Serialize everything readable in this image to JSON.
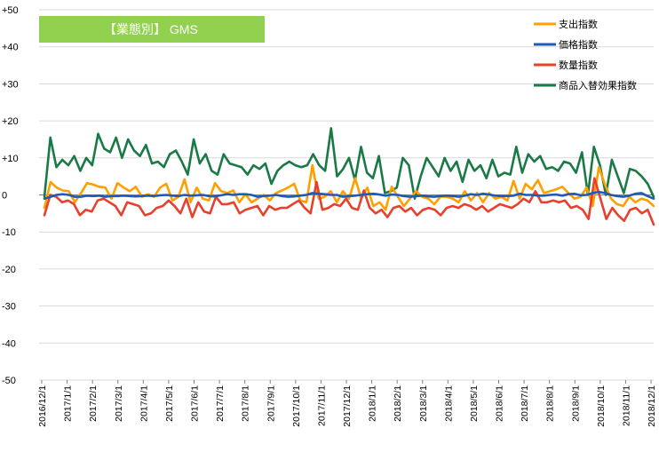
{
  "colors": {
    "spend": "#ffa000",
    "price": "#1f5ab4",
    "quantity": "#e8402d",
    "substitution": "#1a7a46",
    "title_bg": "#92d050",
    "title_text": "#ffffff",
    "gridline": "#d9d9d9"
  },
  "chart_data": {
    "type": "line",
    "title": "【業態別】 GMS",
    "ylim": [
      -50,
      50
    ],
    "ytick_labels": [
      "+50",
      "+40",
      "+30",
      "+20",
      "+10",
      "0",
      "-10",
      "-20",
      "-30",
      "-40",
      "-50"
    ],
    "xlabels": [
      "2016/12/1",
      "2017/1/1",
      "2017/2/1",
      "2017/3/1",
      "2017/4/1",
      "2017/5/1",
      "2017/6/1",
      "2017/7/1",
      "2017/8/1",
      "2017/9/1",
      "2017/10/1",
      "2017/11/1",
      "2017/12/1",
      "2018/1/1",
      "2018/2/1",
      "2018/3/1",
      "2018/4/1",
      "2018/5/1",
      "2018/6/1",
      "2018/7/1",
      "2018/8/1",
      "2018/9/1",
      "2018/10/1",
      "2018/11/1",
      "2018/12/1"
    ],
    "grid": "horizontal",
    "legend_position": "top-right",
    "series": [
      {
        "name": "支出指数",
        "color_key": "spend",
        "values": [
          -3.5,
          3.5,
          2,
          1.2,
          1,
          -2,
          0.5,
          3.2,
          2.8,
          2.2,
          2,
          -1,
          3.2,
          2,
          1,
          2.2,
          -0.5,
          0.2,
          -0.5,
          2,
          3,
          -1.5,
          -0.5,
          4.2,
          -2,
          2,
          -1,
          -1.5,
          3.2,
          1,
          0.5,
          1.2,
          -2,
          0.2,
          -2,
          -1,
          0,
          -1.5,
          0.5,
          1.2,
          2,
          3,
          -1.5,
          -2,
          8,
          -1,
          -0.5,
          1,
          -2,
          1,
          -1,
          4.5,
          -1,
          2,
          -3,
          -2,
          -4,
          2.2,
          -0.5,
          -3,
          -1,
          1,
          -0.5,
          -1,
          -2.5,
          -0.5,
          -0.5,
          -1,
          -2,
          1,
          -1.5,
          0.5,
          -2,
          0.5,
          -1,
          -0.5,
          -1.5,
          3.8,
          -1,
          3,
          1.5,
          4,
          0.5,
          1,
          1.5,
          2.2,
          0.5,
          -1,
          -0.5,
          2,
          -3,
          7.5,
          2.8,
          -1,
          -2.5,
          -3,
          -0.5,
          -2,
          -1,
          -1.5,
          -3
        ]
      },
      {
        "name": "価格指数",
        "color_key": "price",
        "values": [
          -1,
          -0.5,
          0,
          0.2,
          0,
          -0.5,
          -0.5,
          -0.2,
          -0.3,
          -0.2,
          -0.5,
          -0.3,
          -0.3,
          -0.2,
          -0.3,
          -0.4,
          -0.3,
          -0.2,
          -0.3,
          -0.1,
          0,
          -0.2,
          -0.3,
          0,
          -0.2,
          -0.1,
          0,
          -0.3,
          -0.4,
          -0.1,
          0.2,
          0,
          0.2,
          0.2,
          0,
          -0.5,
          -0.3,
          -0.2,
          0,
          -0.3,
          -0.5,
          -0.4,
          -0.2,
          0,
          0.5,
          0.3,
          0.2,
          0,
          0,
          -0.5,
          -0.3,
          -0.2,
          0,
          0.2,
          0.3,
          0.1,
          -0.2,
          0.1,
          0,
          -0.3,
          -0.5,
          -0.3,
          -0.2,
          -0.4,
          -0.5,
          -0.3,
          -0.2,
          -0.3,
          -0.5,
          -0.2,
          0.2,
          0,
          0.3,
          0.1,
          -0.2,
          -0.3,
          -0.3,
          -0.2,
          0.3,
          0,
          0,
          -0.2,
          -0.2,
          0,
          0.1,
          -0.2,
          0.2,
          0.3,
          -0.1,
          0,
          0.5,
          0.8,
          0.5,
          0,
          -0.3,
          -0.5,
          -0.2,
          0.3,
          0.5,
          -0.3,
          -1
        ]
      },
      {
        "name": "数量指数",
        "color_key": "quantity",
        "values": [
          -5.5,
          0,
          -0.5,
          -2,
          -1.5,
          -2.5,
          -5.5,
          -4,
          -4.5,
          -1.5,
          -1,
          -2,
          -3,
          -5.5,
          -2,
          -2.5,
          -3,
          -5.5,
          -5,
          -3.5,
          -3,
          -1.5,
          -3,
          -5,
          -1,
          -6,
          -2,
          -4.5,
          -5,
          -0.5,
          -2.5,
          -2.5,
          -2,
          -5,
          -4,
          -3.5,
          -3,
          -5.5,
          -3,
          -4,
          -3.5,
          -3.5,
          -2.5,
          -1.5,
          -3.5,
          -5,
          3.5,
          -4,
          -3.5,
          -2.5,
          -3,
          -1,
          -3.5,
          -4,
          1.2,
          -3.5,
          -5,
          -4,
          -6,
          -3.5,
          -3,
          -4.5,
          -3.5,
          -5.5,
          -4,
          -3.5,
          -4,
          -5.5,
          -3.5,
          -3,
          -3.5,
          -2.5,
          -3,
          -4,
          -3,
          -4.5,
          -3.5,
          -2.5,
          -3,
          -3.5,
          -2.5,
          -1,
          -2,
          1,
          -2,
          -2,
          -1.5,
          -2,
          -1.5,
          -3.5,
          -3,
          -4,
          -6.5,
          4.5,
          -1,
          -6.5,
          -3.5,
          -5.5,
          -7,
          -4,
          -3.5,
          -5,
          -4,
          -8
        ]
      },
      {
        "name": "商品入替効果指数",
        "color_key": "substitution",
        "values": [
          -0.5,
          15.5,
          7.5,
          9.5,
          8,
          10.5,
          6.5,
          10,
          8,
          16.5,
          12.5,
          11.5,
          15.5,
          10,
          15,
          12,
          10.5,
          13.5,
          8.5,
          9,
          7.5,
          11,
          12,
          9,
          5.5,
          15,
          8.5,
          11,
          6.5,
          5.5,
          11,
          8.5,
          8,
          7.5,
          5.5,
          8,
          7,
          8.5,
          3,
          6.5,
          8,
          9,
          8,
          7.5,
          8,
          11,
          8,
          6.5,
          18,
          5,
          7,
          10,
          4,
          13,
          6,
          4.5,
          10.5,
          0.5,
          1,
          2,
          10,
          8,
          -1,
          5,
          10,
          7.5,
          5,
          10,
          6.5,
          9,
          3.5,
          9.5,
          6.5,
          8,
          4.5,
          9.5,
          5,
          6,
          5.5,
          13,
          6,
          11,
          9,
          10.5,
          7,
          7.5,
          6.5,
          9,
          8.5,
          6,
          11.5,
          0,
          13,
          8,
          0,
          9.5,
          5,
          0.5,
          7,
          6.5,
          5,
          3,
          -0.5
        ]
      }
    ]
  }
}
